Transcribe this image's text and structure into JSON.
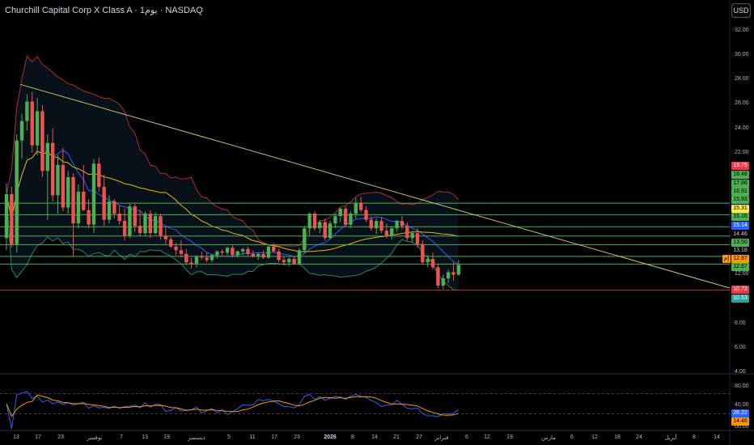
{
  "header": {
    "title": "Churchill Capital Corp X Class A · 1يوم · NASDAQ",
    "currency_button": "USD"
  },
  "colors": {
    "up": "#26a69a",
    "up_bright": "#4caf50",
    "down": "#ef5350",
    "trendline": "#c8c26a",
    "bb_upper": "#b22833",
    "bb_lower": "#1f8a70",
    "ma_blue": "#2962ff",
    "ma_yellow": "#e6b800",
    "hline_green": "#4caf50",
    "support_red": "#c62828",
    "rsi_blue": "#2962ff",
    "rsi_orange": "#ff9800"
  },
  "price_axis": {
    "ticks": [
      "32.00",
      "30.00",
      "28.00",
      "26.00",
      "24.00",
      "22.00",
      "12.00",
      "8.00",
      "6.00",
      "4.00"
    ],
    "tags": [
      {
        "text": "19.75",
        "bg": "#f23645",
        "fg": "#ffffff"
      },
      {
        "text": "18.48",
        "bg": "#4caf50",
        "fg": "#000000"
      },
      {
        "text": "17.86",
        "bg": "#4caf50",
        "fg": "#000000"
      },
      {
        "text": "16.91",
        "bg": "#4caf50",
        "fg": "#000000"
      },
      {
        "text": "15.93",
        "bg": "#4caf50",
        "fg": "#000000"
      },
      {
        "text": "15.31",
        "bg": "#ffeb3b",
        "fg": "#000000"
      },
      {
        "text": "15.16",
        "bg": "#4caf50",
        "fg": "#000000"
      },
      {
        "text": "15.14",
        "bg": "#2962ff",
        "fg": "#ffffff"
      },
      {
        "text": "14.46",
        "bg": "#000000",
        "fg": "#d1d4dc"
      },
      {
        "text": "13.50",
        "bg": "#4caf50",
        "fg": "#000000"
      },
      {
        "text": "13.18",
        "bg": "#000000",
        "fg": "#d1d4dc"
      },
      {
        "text": "12.87",
        "bg": "#ff9800",
        "fg": "#000000"
      },
      {
        "text": "12.67",
        "bg": "#4caf50",
        "fg": "#000000"
      },
      {
        "text": "10.73",
        "bg": "#f23645",
        "fg": "#ffffff"
      },
      {
        "text": "10.53",
        "bg": "#26a69a",
        "fg": "#ffffff"
      }
    ],
    "current_price_badge": "إم"
  },
  "rsi_axis": {
    "ticks": [
      "80.00",
      "40.00",
      "00.00"
    ],
    "tags": [
      {
        "text": "26.22",
        "bg": "#2962ff",
        "fg": "#ffffff"
      },
      {
        "text": "14.46",
        "bg": "#ff9800",
        "fg": "#000000"
      }
    ]
  },
  "time_axis": [
    "13",
    "17",
    "23",
    "نوفمبر",
    "7",
    "13",
    "19",
    "ديسمبر",
    "5",
    "11",
    "17",
    "23",
    "2026",
    "8",
    "14",
    "21",
    "27",
    "فبراير",
    "6",
    "12",
    "19",
    "مارس",
    "6",
    "12",
    "18",
    "24",
    "أبريل",
    "8",
    "14"
  ],
  "chart_data": {
    "type": "candlestick",
    "title": "Churchill Capital Corp X Class A · 1يوم · NASDAQ",
    "ylim": [
      4,
      33
    ],
    "y_ticks": [
      32,
      30,
      28,
      26,
      24,
      22,
      12,
      8,
      6,
      4
    ],
    "horizontal_levels": [
      17.86,
      16.91,
      15.93,
      15.16,
      14.46,
      13.5,
      12.87,
      10.73
    ],
    "trendline": {
      "start": [
        0,
        27.6
      ],
      "end": [
        100,
        10.9
      ]
    },
    "candles": [
      [
        15,
        19.5,
        14.0,
        18.6
      ],
      [
        18.6,
        19.2,
        14.2,
        14.5
      ],
      [
        14.5,
        23.5,
        13.8,
        23.0
      ],
      [
        23.0,
        25.2,
        21.5,
        24.6
      ],
      [
        24.6,
        26.8,
        23.8,
        26.2
      ],
      [
        26.2,
        27.0,
        22.0,
        22.6
      ],
      [
        22.6,
        26.5,
        21.8,
        25.4
      ],
      [
        25.4,
        25.9,
        20.0,
        20.5
      ],
      [
        20.5,
        23.5,
        16.5,
        22.8
      ],
      [
        22.8,
        24.0,
        18.0,
        18.5
      ],
      [
        18.5,
        21.8,
        17.0,
        21.0
      ],
      [
        21.0,
        22.4,
        17.2,
        17.5
      ],
      [
        17.5,
        20.5,
        17.0,
        20.0
      ],
      [
        20.0,
        20.3,
        13.5,
        16.2
      ],
      [
        16.2,
        19.4,
        15.8,
        18.8
      ],
      [
        18.8,
        21.0,
        17.2,
        17.3
      ],
      [
        17.3,
        18.2,
        15.8,
        16.1
      ],
      [
        16.1,
        21.5,
        15.4,
        21.1
      ],
      [
        21.1,
        21.6,
        18.8,
        19.2
      ],
      [
        19.2,
        20.2,
        16.0,
        16.5
      ],
      [
        16.5,
        18.5,
        16.2,
        18.0
      ],
      [
        18.0,
        18.2,
        16.6,
        17.0
      ],
      [
        17.0,
        17.7,
        16.1,
        16.4
      ],
      [
        16.4,
        17.4,
        14.8,
        15.2
      ],
      [
        15.2,
        17.8,
        15.0,
        17.6
      ],
      [
        17.6,
        17.8,
        15.5,
        16.0
      ],
      [
        16.0,
        17.3,
        15.2,
        15.4
      ],
      [
        15.4,
        17.2,
        15.2,
        17.0
      ],
      [
        17.0,
        17.3,
        15.0,
        15.4
      ],
      [
        15.4,
        17.1,
        15.3,
        16.8
      ],
      [
        16.8,
        17.0,
        14.9,
        15.2
      ],
      [
        15.2,
        15.9,
        14.5,
        14.9
      ],
      [
        14.9,
        15.1,
        14.2,
        14.3
      ],
      [
        14.3,
        14.6,
        13.6,
        14.0
      ],
      [
        14.0,
        14.8,
        13.4,
        13.7
      ],
      [
        13.7,
        14.1,
        12.8,
        13.0
      ],
      [
        13.0,
        13.4,
        12.5,
        12.9
      ],
      [
        12.9,
        13.6,
        12.6,
        13.5
      ],
      [
        13.5,
        13.9,
        13.2,
        13.4
      ],
      [
        13.4,
        13.8,
        13.0,
        13.2
      ],
      [
        13.2,
        13.7,
        13.0,
        13.6
      ],
      [
        13.6,
        14.0,
        13.3,
        13.9
      ],
      [
        13.9,
        14.1,
        13.5,
        13.8
      ],
      [
        13.8,
        14.3,
        13.6,
        14.2
      ],
      [
        14.2,
        14.4,
        13.4,
        13.6
      ],
      [
        13.6,
        14.0,
        13.4,
        13.9
      ],
      [
        13.9,
        14.2,
        13.6,
        14.1
      ],
      [
        14.1,
        14.3,
        13.5,
        13.7
      ],
      [
        13.7,
        14.0,
        13.4,
        13.5
      ],
      [
        13.5,
        13.8,
        13.2,
        13.7
      ],
      [
        13.7,
        14.0,
        13.3,
        13.4
      ],
      [
        13.4,
        14.4,
        13.3,
        14.3
      ],
      [
        14.3,
        14.6,
        13.8,
        13.9
      ],
      [
        13.9,
        14.1,
        13.0,
        13.2
      ],
      [
        13.2,
        13.5,
        12.8,
        13.0
      ],
      [
        13.0,
        13.4,
        12.7,
        13.3
      ],
      [
        13.3,
        13.5,
        12.8,
        12.9
      ],
      [
        12.9,
        14.2,
        12.8,
        14.0
      ],
      [
        14.0,
        16.0,
        13.8,
        15.8
      ],
      [
        15.8,
        17.1,
        15.2,
        17.0
      ],
      [
        17.0,
        17.2,
        15.6,
        15.8
      ],
      [
        15.8,
        16.5,
        15.4,
        16.3
      ],
      [
        16.3,
        16.6,
        14.8,
        15.0
      ],
      [
        15.0,
        16.4,
        14.9,
        16.2
      ],
      [
        16.2,
        17.0,
        15.8,
        16.8
      ],
      [
        16.8,
        17.5,
        16.3,
        17.4
      ],
      [
        17.4,
        17.6,
        16.0,
        16.1
      ],
      [
        16.1,
        17.2,
        15.8,
        17.0
      ],
      [
        17.0,
        18.3,
        16.6,
        17.9
      ],
      [
        17.9,
        18.4,
        17.1,
        17.3
      ],
      [
        17.3,
        17.6,
        16.3,
        16.5
      ],
      [
        16.5,
        16.8,
        15.6,
        15.8
      ],
      [
        15.8,
        16.6,
        15.3,
        16.4
      ],
      [
        16.4,
        16.7,
        15.4,
        15.6
      ],
      [
        15.6,
        16.2,
        15.0,
        15.2
      ],
      [
        15.2,
        16.0,
        14.9,
        15.8
      ],
      [
        15.8,
        16.5,
        15.5,
        16.4
      ],
      [
        16.4,
        16.8,
        15.7,
        16.0
      ],
      [
        16.0,
        16.3,
        14.8,
        15.0
      ],
      [
        15.0,
        15.6,
        14.6,
        15.4
      ],
      [
        15.4,
        15.8,
        14.2,
        14.5
      ],
      [
        14.5,
        14.8,
        12.8,
        13.0
      ],
      [
        13.0,
        13.6,
        12.6,
        13.3
      ],
      [
        13.3,
        13.8,
        12.4,
        12.6
      ],
      [
        12.6,
        12.9,
        10.9,
        11.1
      ],
      [
        11.1,
        12.0,
        10.8,
        11.7
      ],
      [
        11.7,
        12.4,
        11.3,
        12.2
      ],
      [
        12.2,
        13.0,
        11.5,
        12.0
      ],
      [
        12.0,
        13.2,
        11.9,
        12.8
      ]
    ],
    "rsi": {
      "overbought": 70,
      "oversold": 30,
      "latest_blue": 26.22,
      "latest_orange": 14.46
    }
  }
}
